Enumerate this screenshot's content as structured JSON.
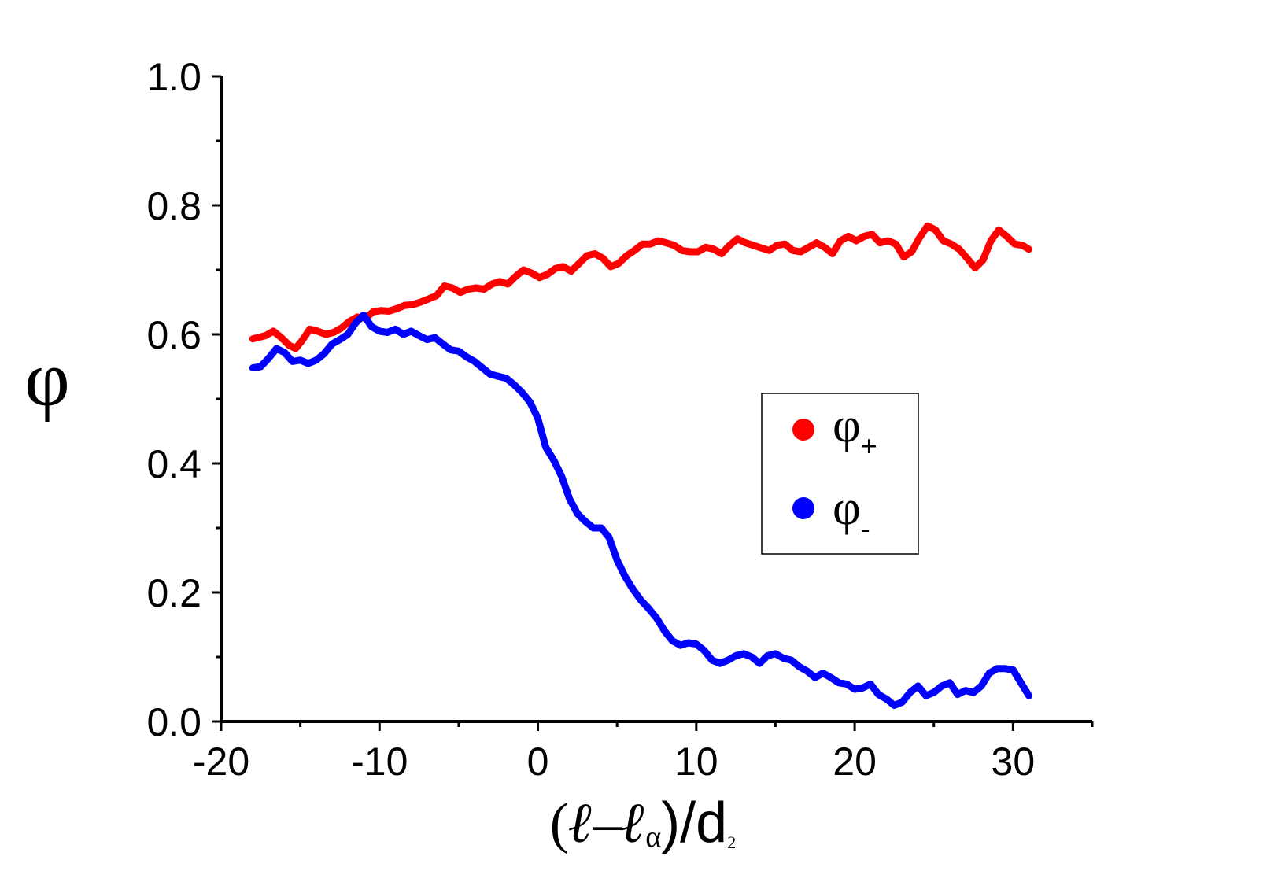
{
  "chart_data": {
    "type": "line",
    "title": "",
    "xlabel": {
      "open": "(",
      "l1": "ℓ",
      "dash": "–",
      "l2": "ℓ",
      "sub_alpha": "α",
      "close": ")/d",
      "sub2": "2"
    },
    "ylabel": "φ",
    "xlim": [
      -20,
      35
    ],
    "ylim": [
      0.0,
      1.0
    ],
    "x_major_ticks": [
      -20,
      -10,
      0,
      10,
      20,
      30
    ],
    "x_tick_labels": [
      "-20",
      "-10",
      "0",
      "10",
      "20",
      "30"
    ],
    "y_major_ticks": [
      0.0,
      0.2,
      0.4,
      0.6,
      0.8,
      1.0
    ],
    "y_tick_labels": [
      "0.0",
      "0.2",
      "0.4",
      "0.6",
      "0.8",
      "1.0"
    ],
    "grid": false,
    "legend_position": "right-center",
    "series": [
      {
        "name": "φ",
        "subscript": "+",
        "color": "#ff0000",
        "points": [
          [
            -18,
            0.593
          ],
          [
            -17.2,
            0.598
          ],
          [
            -16.7,
            0.605
          ],
          [
            -16.2,
            0.595
          ],
          [
            -15.7,
            0.583
          ],
          [
            -15.3,
            0.578
          ],
          [
            -14.9,
            0.59
          ],
          [
            -14.4,
            0.608
          ],
          [
            -13.9,
            0.605
          ],
          [
            -13.4,
            0.6
          ],
          [
            -12.9,
            0.603
          ],
          [
            -12.4,
            0.61
          ],
          [
            -11.9,
            0.62
          ],
          [
            -11.4,
            0.627
          ],
          [
            -10.9,
            0.625
          ],
          [
            -10.4,
            0.635
          ],
          [
            -9.9,
            0.637
          ],
          [
            -9.4,
            0.636
          ],
          [
            -8.9,
            0.64
          ],
          [
            -8.4,
            0.645
          ],
          [
            -7.9,
            0.646
          ],
          [
            -7.4,
            0.65
          ],
          [
            -6.9,
            0.655
          ],
          [
            -6.4,
            0.66
          ],
          [
            -5.9,
            0.675
          ],
          [
            -5.4,
            0.672
          ],
          [
            -4.9,
            0.665
          ],
          [
            -4.4,
            0.67
          ],
          [
            -3.9,
            0.672
          ],
          [
            -3.4,
            0.67
          ],
          [
            -2.9,
            0.678
          ],
          [
            -2.4,
            0.682
          ],
          [
            -1.9,
            0.678
          ],
          [
            -1.4,
            0.69
          ],
          [
            -0.9,
            0.7
          ],
          [
            -0.4,
            0.695
          ],
          [
            0.1,
            0.688
          ],
          [
            0.6,
            0.693
          ],
          [
            1.1,
            0.702
          ],
          [
            1.6,
            0.705
          ],
          [
            2.1,
            0.698
          ],
          [
            2.6,
            0.71
          ],
          [
            3.1,
            0.722
          ],
          [
            3.6,
            0.725
          ],
          [
            4.1,
            0.718
          ],
          [
            4.6,
            0.705
          ],
          [
            5.1,
            0.71
          ],
          [
            5.6,
            0.722
          ],
          [
            6.1,
            0.73
          ],
          [
            6.6,
            0.74
          ],
          [
            7.1,
            0.74
          ],
          [
            7.6,
            0.745
          ],
          [
            8.1,
            0.742
          ],
          [
            8.6,
            0.738
          ],
          [
            9.1,
            0.73
          ],
          [
            9.6,
            0.728
          ],
          [
            10.1,
            0.728
          ],
          [
            10.6,
            0.735
          ],
          [
            11.1,
            0.732
          ],
          [
            11.6,
            0.725
          ],
          [
            12.1,
            0.738
          ],
          [
            12.6,
            0.748
          ],
          [
            13.1,
            0.742
          ],
          [
            13.6,
            0.738
          ],
          [
            14.1,
            0.734
          ],
          [
            14.6,
            0.73
          ],
          [
            15.1,
            0.738
          ],
          [
            15.6,
            0.74
          ],
          [
            16.1,
            0.73
          ],
          [
            16.6,
            0.728
          ],
          [
            17.1,
            0.735
          ],
          [
            17.6,
            0.742
          ],
          [
            18.1,
            0.735
          ],
          [
            18.6,
            0.725
          ],
          [
            19.1,
            0.745
          ],
          [
            19.6,
            0.752
          ],
          [
            20.1,
            0.745
          ],
          [
            20.6,
            0.752
          ],
          [
            21.1,
            0.755
          ],
          [
            21.6,
            0.742
          ],
          [
            22.1,
            0.745
          ],
          [
            22.6,
            0.74
          ],
          [
            23.1,
            0.72
          ],
          [
            23.6,
            0.728
          ],
          [
            24.1,
            0.75
          ],
          [
            24.6,
            0.768
          ],
          [
            25.1,
            0.762
          ],
          [
            25.6,
            0.745
          ],
          [
            26.1,
            0.74
          ],
          [
            26.6,
            0.732
          ],
          [
            27.1,
            0.718
          ],
          [
            27.6,
            0.703
          ],
          [
            28.1,
            0.715
          ],
          [
            28.6,
            0.745
          ],
          [
            29.1,
            0.762
          ],
          [
            29.6,
            0.752
          ],
          [
            30.1,
            0.74
          ],
          [
            30.6,
            0.738
          ],
          [
            31,
            0.732
          ]
        ]
      },
      {
        "name": "φ",
        "subscript": "-",
        "color": "#0000ff",
        "points": [
          [
            -18,
            0.548
          ],
          [
            -17.5,
            0.55
          ],
          [
            -17.0,
            0.563
          ],
          [
            -16.5,
            0.578
          ],
          [
            -16.0,
            0.572
          ],
          [
            -15.5,
            0.558
          ],
          [
            -15.0,
            0.56
          ],
          [
            -14.5,
            0.555
          ],
          [
            -14.0,
            0.56
          ],
          [
            -13.5,
            0.57
          ],
          [
            -13.0,
            0.585
          ],
          [
            -12.5,
            0.592
          ],
          [
            -12.0,
            0.6
          ],
          [
            -11.5,
            0.618
          ],
          [
            -11.0,
            0.63
          ],
          [
            -10.5,
            0.612
          ],
          [
            -10.0,
            0.605
          ],
          [
            -9.5,
            0.603
          ],
          [
            -9.0,
            0.608
          ],
          [
            -8.5,
            0.6
          ],
          [
            -8.0,
            0.605
          ],
          [
            -7.5,
            0.598
          ],
          [
            -7.0,
            0.592
          ],
          [
            -6.5,
            0.595
          ],
          [
            -6.0,
            0.585
          ],
          [
            -5.5,
            0.576
          ],
          [
            -5.0,
            0.574
          ],
          [
            -4.5,
            0.565
          ],
          [
            -4.0,
            0.558
          ],
          [
            -3.5,
            0.548
          ],
          [
            -3.0,
            0.538
          ],
          [
            -2.5,
            0.535
          ],
          [
            -2.0,
            0.532
          ],
          [
            -1.5,
            0.522
          ],
          [
            -1.0,
            0.51
          ],
          [
            -0.5,
            0.495
          ],
          [
            0.0,
            0.47
          ],
          [
            0.5,
            0.425
          ],
          [
            1.0,
            0.405
          ],
          [
            1.5,
            0.38
          ],
          [
            2.0,
            0.345
          ],
          [
            2.5,
            0.322
          ],
          [
            3.0,
            0.31
          ],
          [
            3.5,
            0.3
          ],
          [
            4.0,
            0.3
          ],
          [
            4.5,
            0.285
          ],
          [
            5.0,
            0.25
          ],
          [
            5.5,
            0.225
          ],
          [
            6.0,
            0.205
          ],
          [
            6.5,
            0.188
          ],
          [
            7.0,
            0.175
          ],
          [
            7.5,
            0.16
          ],
          [
            8.0,
            0.14
          ],
          [
            8.5,
            0.125
          ],
          [
            9.0,
            0.118
          ],
          [
            9.5,
            0.122
          ],
          [
            10.0,
            0.12
          ],
          [
            10.5,
            0.11
          ],
          [
            11.0,
            0.095
          ],
          [
            11.5,
            0.09
          ],
          [
            12.0,
            0.095
          ],
          [
            12.5,
            0.102
          ],
          [
            13.0,
            0.105
          ],
          [
            13.5,
            0.1
          ],
          [
            14.0,
            0.09
          ],
          [
            14.5,
            0.102
          ],
          [
            15.0,
            0.105
          ],
          [
            15.5,
            0.098
          ],
          [
            16.0,
            0.095
          ],
          [
            16.5,
            0.085
          ],
          [
            17.0,
            0.078
          ],
          [
            17.5,
            0.068
          ],
          [
            18.0,
            0.075
          ],
          [
            18.5,
            0.068
          ],
          [
            19.0,
            0.06
          ],
          [
            19.5,
            0.058
          ],
          [
            20.0,
            0.05
          ],
          [
            20.5,
            0.052
          ],
          [
            21.0,
            0.058
          ],
          [
            21.5,
            0.042
          ],
          [
            22.0,
            0.035
          ],
          [
            22.5,
            0.025
          ],
          [
            23.0,
            0.03
          ],
          [
            23.5,
            0.045
          ],
          [
            24.0,
            0.055
          ],
          [
            24.5,
            0.04
          ],
          [
            25.0,
            0.045
          ],
          [
            25.5,
            0.055
          ],
          [
            26.0,
            0.06
          ],
          [
            26.5,
            0.042
          ],
          [
            27.0,
            0.048
          ],
          [
            27.5,
            0.045
          ],
          [
            28.0,
            0.055
          ],
          [
            28.5,
            0.075
          ],
          [
            29.0,
            0.082
          ],
          [
            29.5,
            0.082
          ],
          [
            30.0,
            0.08
          ],
          [
            30.5,
            0.06
          ],
          [
            31,
            0.04
          ]
        ]
      }
    ]
  }
}
